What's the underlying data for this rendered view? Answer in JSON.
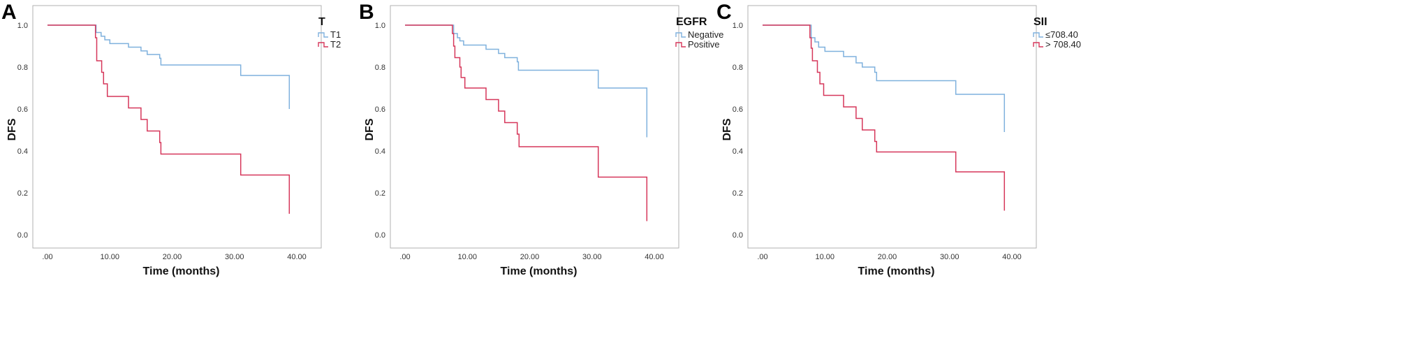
{
  "chart_data": [
    {
      "type": "line",
      "panel_label": "A",
      "xlabel": "Time (months)",
      "ylabel": "DFS",
      "xlim": [
        0,
        40
      ],
      "ylim": [
        0,
        1
      ],
      "x_ticks": [
        ".00",
        "10.00",
        "20.00",
        "30.00",
        "40.00"
      ],
      "y_ticks": [
        "0.0",
        "0.2",
        "0.4",
        "0.6",
        "0.8",
        "1.0"
      ],
      "legend_title": "T",
      "legend_position": "top-right",
      "series": [
        {
          "name": "T1",
          "color": "#7fb1dd",
          "steps": [
            [
              0,
              1.0
            ],
            [
              7.8,
              1.0
            ],
            [
              7.8,
              0.965
            ],
            [
              8.6,
              0.965
            ],
            [
              8.6,
              0.947
            ],
            [
              9.2,
              0.947
            ],
            [
              9.2,
              0.93
            ],
            [
              10,
              0.93
            ],
            [
              10,
              0.912
            ],
            [
              13,
              0.912
            ],
            [
              13,
              0.895
            ],
            [
              15,
              0.895
            ],
            [
              15,
              0.877
            ],
            [
              16,
              0.877
            ],
            [
              16,
              0.86
            ],
            [
              18,
              0.86
            ],
            [
              18,
              0.842
            ],
            [
              18.2,
              0.842
            ],
            [
              18.2,
              0.81
            ],
            [
              31,
              0.81
            ],
            [
              31,
              0.76
            ],
            [
              38.8,
              0.76
            ],
            [
              38.8,
              0.6
            ]
          ]
        },
        {
          "name": "T2",
          "color": "#d6375a",
          "steps": [
            [
              0,
              1.0
            ],
            [
              7.7,
              1.0
            ],
            [
              7.7,
              0.94
            ],
            [
              7.9,
              0.94
            ],
            [
              7.9,
              0.83
            ],
            [
              8.7,
              0.83
            ],
            [
              8.7,
              0.775
            ],
            [
              9,
              0.775
            ],
            [
              9,
              0.72
            ],
            [
              9.6,
              0.72
            ],
            [
              9.6,
              0.66
            ],
            [
              13,
              0.66
            ],
            [
              13,
              0.605
            ],
            [
              15,
              0.605
            ],
            [
              15,
              0.55
            ],
            [
              16,
              0.55
            ],
            [
              16,
              0.495
            ],
            [
              18,
              0.495
            ],
            [
              18,
              0.44
            ],
            [
              18.2,
              0.44
            ],
            [
              18.2,
              0.385
            ],
            [
              31,
              0.385
            ],
            [
              31,
              0.285
            ],
            [
              38.8,
              0.285
            ],
            [
              38.8,
              0.1
            ]
          ]
        }
      ]
    },
    {
      "type": "line",
      "panel_label": "B",
      "xlabel": "Time (months)",
      "ylabel": "DFS",
      "xlim": [
        0,
        40
      ],
      "ylim": [
        0,
        1
      ],
      "x_ticks": [
        ".00",
        "10.00",
        "20.00",
        "30.00",
        "40.00"
      ],
      "y_ticks": [
        "0.0",
        "0.2",
        "0.4",
        "0.6",
        "0.8",
        "1.0"
      ],
      "legend_title": "EGFR",
      "legend_position": "top-right",
      "series": [
        {
          "name": "Negative",
          "color": "#7fb1dd",
          "steps": [
            [
              0,
              1.0
            ],
            [
              7.8,
              1.0
            ],
            [
              7.8,
              0.96
            ],
            [
              8.4,
              0.96
            ],
            [
              8.4,
              0.94
            ],
            [
              8.8,
              0.94
            ],
            [
              8.8,
              0.925
            ],
            [
              9.4,
              0.925
            ],
            [
              9.4,
              0.905
            ],
            [
              13,
              0.905
            ],
            [
              13,
              0.885
            ],
            [
              15,
              0.885
            ],
            [
              15,
              0.865
            ],
            [
              16,
              0.865
            ],
            [
              16,
              0.845
            ],
            [
              18,
              0.845
            ],
            [
              18,
              0.825
            ],
            [
              18.2,
              0.825
            ],
            [
              18.2,
              0.785
            ],
            [
              31,
              0.785
            ],
            [
              31,
              0.7
            ],
            [
              38.8,
              0.7
            ],
            [
              38.8,
              0.465
            ]
          ]
        },
        {
          "name": "Positive",
          "color": "#d6375a",
          "steps": [
            [
              0,
              1.0
            ],
            [
              7.6,
              1.0
            ],
            [
              7.6,
              0.96
            ],
            [
              7.8,
              0.96
            ],
            [
              7.8,
              0.9
            ],
            [
              8,
              0.9
            ],
            [
              8,
              0.845
            ],
            [
              8.8,
              0.845
            ],
            [
              8.8,
              0.8
            ],
            [
              9,
              0.8
            ],
            [
              9,
              0.75
            ],
            [
              9.6,
              0.75
            ],
            [
              9.6,
              0.7
            ],
            [
              13,
              0.7
            ],
            [
              13,
              0.645
            ],
            [
              15,
              0.645
            ],
            [
              15,
              0.59
            ],
            [
              16,
              0.59
            ],
            [
              16,
              0.535
            ],
            [
              18,
              0.535
            ],
            [
              18,
              0.48
            ],
            [
              18.3,
              0.48
            ],
            [
              18.3,
              0.42
            ],
            [
              31,
              0.42
            ],
            [
              31,
              0.275
            ],
            [
              38.8,
              0.275
            ],
            [
              38.8,
              0.065
            ]
          ]
        }
      ]
    },
    {
      "type": "line",
      "panel_label": "C",
      "xlabel": "Time (months)",
      "ylabel": "DFS",
      "xlim": [
        0,
        40
      ],
      "ylim": [
        0,
        1
      ],
      "x_ticks": [
        ".00",
        "10.00",
        "20.00",
        "30.00",
        "40.00"
      ],
      "y_ticks": [
        "0.0",
        "0.2",
        "0.4",
        "0.6",
        "0.8",
        "1.0"
      ],
      "legend_title": "SII",
      "legend_position": "top-right",
      "series": [
        {
          "name": "≤708.40",
          "color": "#7fb1dd",
          "steps": [
            [
              0,
              1.0
            ],
            [
              7.8,
              1.0
            ],
            [
              7.8,
              0.94
            ],
            [
              8.4,
              0.94
            ],
            [
              8.4,
              0.92
            ],
            [
              9,
              0.92
            ],
            [
              9,
              0.895
            ],
            [
              10,
              0.895
            ],
            [
              10,
              0.875
            ],
            [
              13,
              0.875
            ],
            [
              13,
              0.85
            ],
            [
              15,
              0.85
            ],
            [
              15,
              0.82
            ],
            [
              16,
              0.82
            ],
            [
              16,
              0.8
            ],
            [
              18,
              0.8
            ],
            [
              18,
              0.775
            ],
            [
              18.3,
              0.775
            ],
            [
              18.3,
              0.735
            ],
            [
              31,
              0.735
            ],
            [
              31,
              0.67
            ],
            [
              38.8,
              0.67
            ],
            [
              38.8,
              0.49
            ]
          ]
        },
        {
          "name": "> 708.40",
          "color": "#d6375a",
          "steps": [
            [
              0,
              1.0
            ],
            [
              7.6,
              1.0
            ],
            [
              7.6,
              0.94
            ],
            [
              7.8,
              0.94
            ],
            [
              7.8,
              0.89
            ],
            [
              8,
              0.89
            ],
            [
              8,
              0.83
            ],
            [
              8.8,
              0.83
            ],
            [
              8.8,
              0.775
            ],
            [
              9.2,
              0.775
            ],
            [
              9.2,
              0.72
            ],
            [
              9.8,
              0.72
            ],
            [
              9.8,
              0.665
            ],
            [
              13,
              0.665
            ],
            [
              13,
              0.61
            ],
            [
              15,
              0.61
            ],
            [
              15,
              0.555
            ],
            [
              16,
              0.555
            ],
            [
              16,
              0.5
            ],
            [
              18,
              0.5
            ],
            [
              18,
              0.445
            ],
            [
              18.3,
              0.445
            ],
            [
              18.3,
              0.395
            ],
            [
              31,
              0.395
            ],
            [
              31,
              0.3
            ],
            [
              38.8,
              0.3
            ],
            [
              38.8,
              0.115
            ]
          ]
        }
      ]
    }
  ]
}
